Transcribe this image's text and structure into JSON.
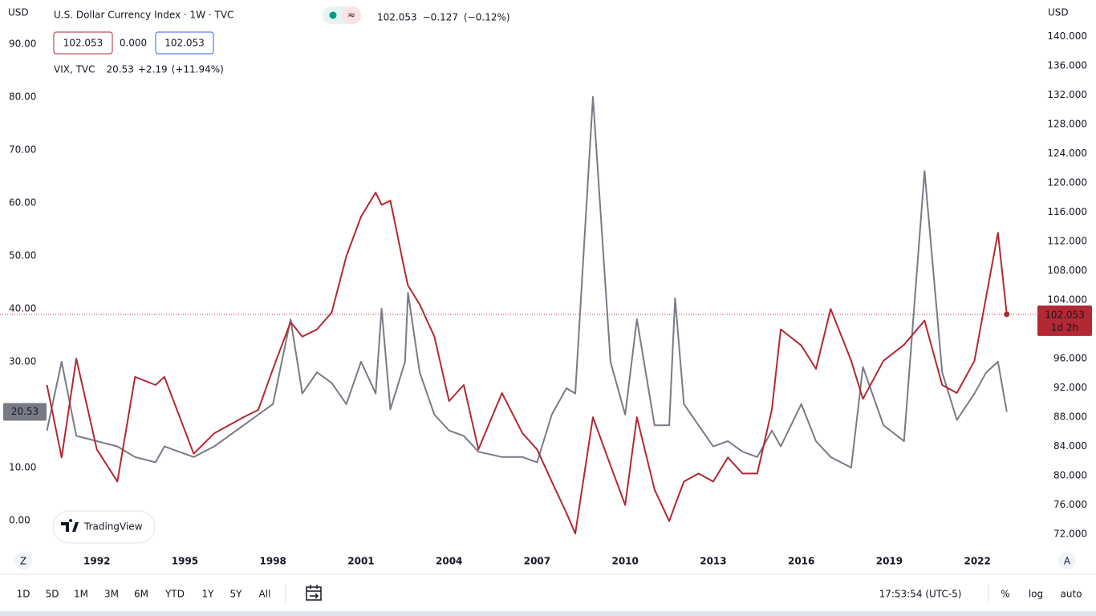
{
  "chart_data": {
    "type": "line",
    "title": "U.S. Dollar Currency Index · 1W · TVC",
    "x": [
      1990.3,
      1990.8,
      1991.3,
      1992.0,
      1992.7,
      1993.3,
      1994.0,
      1994.3,
      1995.3,
      1996.0,
      1997.0,
      1997.5,
      1998.0,
      1998.6,
      1999.0,
      1999.5,
      2000.0,
      2000.5,
      2001.0,
      2001.5,
      2001.7,
      2002.0,
      2002.5,
      2002.6,
      2003.0,
      2003.5,
      2004.0,
      2004.5,
      2005.0,
      2005.8,
      2006.5,
      2007.0,
      2007.5,
      2008.0,
      2008.3,
      2008.9,
      2009.5,
      2010.0,
      2010.4,
      2011.0,
      2011.5,
      2011.7,
      2012.0,
      2012.5,
      2013.0,
      2013.5,
      2014.0,
      2014.5,
      2015.0,
      2015.3,
      2016.0,
      2016.5,
      2017.0,
      2017.7,
      2018.1,
      2018.8,
      2019.5,
      2020.2,
      2020.8,
      2021.3,
      2021.9,
      2022.3,
      2022.7,
      2023.0
    ],
    "series": [
      {
        "name": "VIX, TVC",
        "color": "#787b86",
        "values": [
          17,
          30,
          16,
          15,
          14,
          12,
          11,
          14,
          12,
          14,
          18,
          20,
          22,
          38,
          24,
          28,
          26,
          22,
          30,
          24,
          40,
          21,
          30,
          43,
          28,
          20,
          17,
          16,
          13,
          12,
          12,
          11,
          20,
          25,
          24,
          80,
          30,
          20,
          38,
          18,
          18,
          42,
          22,
          18,
          14,
          15,
          13,
          12,
          17,
          14,
          22,
          15,
          12,
          10,
          29,
          18,
          15,
          66,
          28,
          19,
          24,
          28,
          30,
          20.53
        ]
      },
      {
        "color": "#b22833",
        "axis": "y2",
        "values": [
          92.4,
          82.5,
          96.0,
          83.6,
          79.2,
          93.5,
          92.4,
          93.5,
          83.0,
          85.8,
          88.0,
          89.0,
          94.6,
          101.0,
          99.0,
          100.0,
          102.3,
          110.0,
          115.4,
          118.7,
          117.0,
          117.6,
          107.8,
          106.0,
          103.4,
          99.0,
          90.2,
          92.4,
          83.6,
          91.3,
          85.8,
          83.6,
          79.2,
          74.9,
          72.1,
          88.0,
          81.4,
          76.0,
          88.0,
          78.1,
          73.8,
          76.0,
          79.2,
          80.3,
          79.2,
          82.5,
          80.3,
          80.3,
          89.1,
          100.0,
          97.8,
          94.6,
          102.8,
          95.7,
          90.5,
          95.7,
          97.9,
          101.2,
          92.4,
          91.3,
          95.7,
          104.5,
          113.2,
          102.053
        ]
      }
    ],
    "xlim": [
      1988.7,
      2024.1
    ],
    "xticks": [
      1992,
      1995,
      1998,
      2001,
      2004,
      2007,
      2010,
      2013,
      2016,
      2019,
      2022
    ],
    "ylim": [
      -5.9,
      98.3
    ],
    "yticks": [
      {
        "value": 0,
        "label": "0.00"
      },
      {
        "value": 10,
        "label": "10.00"
      },
      {
        "value": 20,
        "label": "20.00"
      },
      {
        "value": 30,
        "label": "30.00"
      },
      {
        "value": 40,
        "label": "40.00"
      },
      {
        "value": 50,
        "label": "50.00"
      },
      {
        "value": 60,
        "label": "60.00"
      },
      {
        "value": 70,
        "label": "70.00"
      },
      {
        "value": 80,
        "label": "80.00"
      },
      {
        "value": 90,
        "label": "90.00"
      }
    ],
    "y2lim": [
      69.6,
      145.0
    ],
    "y2ticks": [
      {
        "value": 72,
        "label": "72.000"
      },
      {
        "value": 76,
        "label": "76.000"
      },
      {
        "value": 80,
        "label": "80.000"
      },
      {
        "value": 84,
        "label": "84.000"
      },
      {
        "value": 88,
        "label": "88.000"
      },
      {
        "value": 92,
        "label": "92.000"
      },
      {
        "value": 96,
        "label": "96.000"
      },
      {
        "value": 100,
        "label": "100.000"
      },
      {
        "value": 104,
        "label": "104.000"
      },
      {
        "value": 108,
        "label": "108.000"
      },
      {
        "value": 112,
        "label": "112.000"
      },
      {
        "value": 116,
        "label": "116.000"
      },
      {
        "value": 120,
        "label": "120.000"
      },
      {
        "value": 124,
        "label": "124.000"
      },
      {
        "value": 128,
        "label": "128.000"
      },
      {
        "value": 132,
        "label": "132.000"
      },
      {
        "value": 136,
        "label": "136.000"
      },
      {
        "value": 140,
        "label": "140.000"
      }
    ],
    "grid": false
  },
  "ui": {
    "currency_left": "USD",
    "currency_right": "USD",
    "quote": {
      "last": "102.053",
      "change": "−0.127",
      "change_pct": "(−0.12%)"
    },
    "price_boxes": [
      "102.053",
      "0.000",
      "102.053"
    ],
    "vix_legend": {
      "last": "20.53",
      "change": "+2.19",
      "change_pct": "(+11.94%)"
    },
    "tags": {
      "left": "20.53",
      "right": "102.053",
      "countdown": "1d 2h"
    },
    "logo": "TradingView",
    "scale_buttons": [
      "Z",
      "A"
    ],
    "ranges": [
      "1D",
      "5D",
      "1M",
      "3M",
      "6M",
      "YTD",
      "1Y",
      "5Y",
      "All"
    ],
    "clock": "17:53:54 (UTC-5)",
    "options": [
      "%",
      "log",
      "auto"
    ]
  }
}
